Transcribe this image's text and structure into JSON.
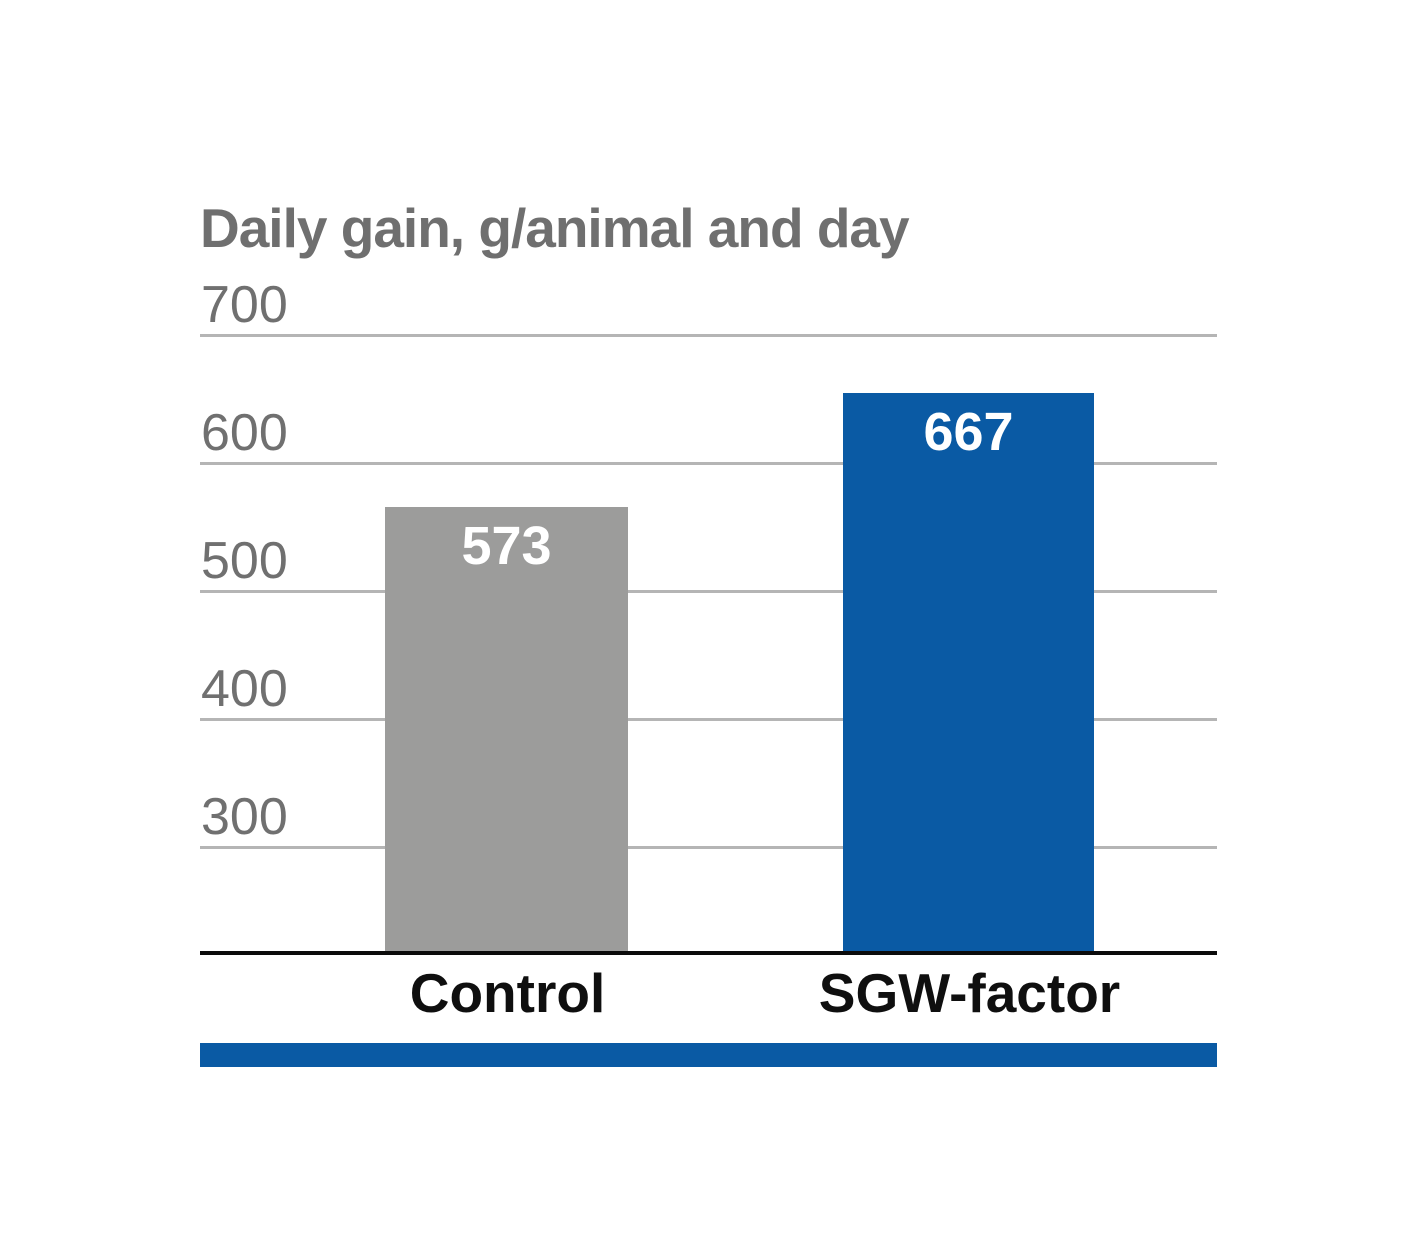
{
  "chart_data": {
    "type": "bar",
    "title": "Daily gain, g/animal and day",
    "categories": [
      "Control",
      "SGW-factor"
    ],
    "values": [
      573,
      667
    ],
    "data_labels": [
      "573",
      "667"
    ],
    "series": [
      {
        "name": "Control",
        "values": [
          573
        ],
        "color": "#9c9c9b"
      },
      {
        "name": "SGW-factor",
        "values": [
          667
        ],
        "color": "#0a5aa4"
      }
    ],
    "xlabel": "",
    "ylabel": "",
    "yticks": [
      300,
      400,
      500,
      600,
      700
    ],
    "ylim": [
      205,
      715
    ],
    "grid": true,
    "legend": false,
    "bar_colors": [
      "#9c9c9b",
      "#0a5aa4"
    ],
    "value_label_color": "#ffffff",
    "colors": {
      "title": "#6f6f6f",
      "tick_label": "#707070",
      "gridline": "#b5b5b5",
      "axis_line": "#0b0b0b",
      "category_label": "#0f0f0f",
      "accent_bar": "#0a5aa4"
    }
  },
  "footer": {
    "accent_bar_color": "#0a5aa4"
  }
}
